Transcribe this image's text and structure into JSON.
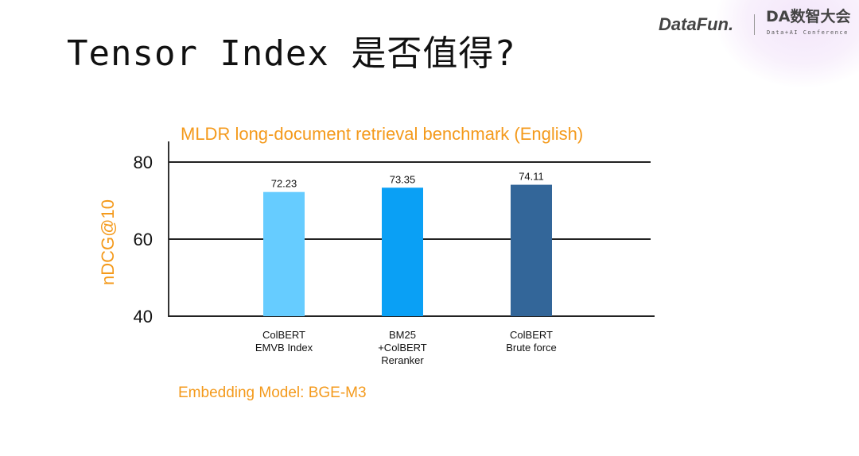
{
  "slide": {
    "title": "Tensor Index 是否值得?",
    "logo_datafun": "DataFun.",
    "logo_da": "DA数智大会",
    "logo_da_sub": "Data+AI Conference",
    "note": "Embedding Model: BGE-M3"
  },
  "chart_data": {
    "type": "bar",
    "title": "MLDR long-document retrieval benchmark (English)",
    "xlabel": "",
    "ylabel": "nDCG@10",
    "ylim": [
      40,
      80
    ],
    "yticks": [
      "40",
      "60",
      "80"
    ],
    "grid": true,
    "categories": [
      [
        "ColBERT",
        "EMVB Index"
      ],
      [
        "BM25",
        "+ColBERT",
        "Reranker"
      ],
      [
        "ColBERT",
        "Brute force"
      ]
    ],
    "values": [
      72.23,
      73.35,
      74.11
    ],
    "data_labels": [
      "72.23",
      "73.35",
      "74.11"
    ],
    "colors": [
      "#66ccff",
      "#0aa0f5",
      "#336699"
    ]
  }
}
